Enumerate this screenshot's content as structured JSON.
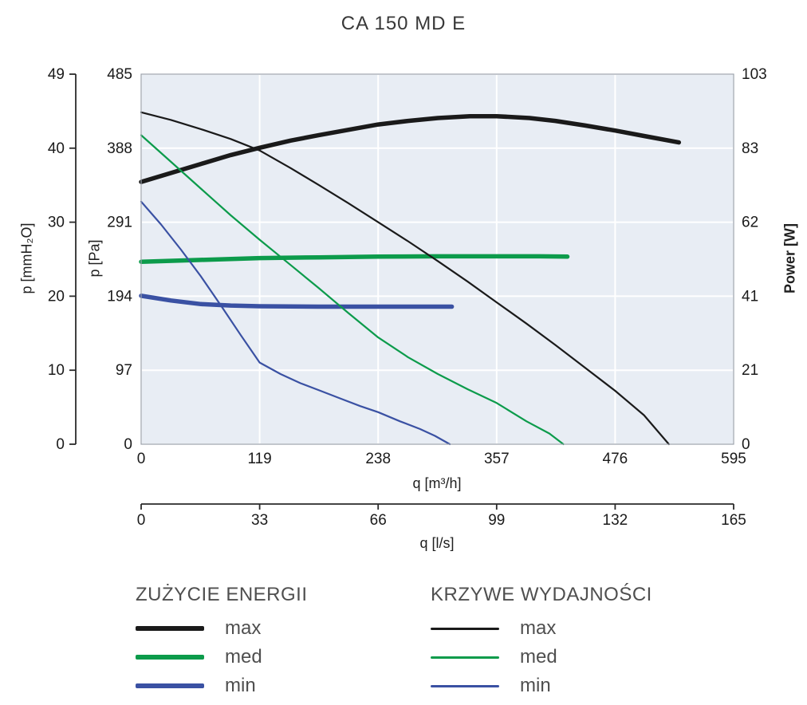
{
  "chart_data": {
    "type": "line",
    "title": "CA 150 MD E",
    "xlim": [
      0,
      595
    ],
    "ylim_pa": [
      0,
      485
    ],
    "ylim_power": [
      0,
      103
    ],
    "grid": true,
    "legend_position": "bottom",
    "plot_bg": "#e8edf4",
    "grid_color": "#ffffff",
    "border_color": "#9aa1ab",
    "axes": {
      "mmh2o": {
        "label": "p [mmH₂O]",
        "ticks": [
          0,
          10,
          20,
          30,
          40,
          49
        ]
      },
      "pa": {
        "label": "p [Pa]",
        "ticks": [
          0,
          97,
          194,
          291,
          388,
          485
        ]
      },
      "power": {
        "label": "Power [W]",
        "ticks": [
          0,
          21,
          41,
          62,
          83,
          103
        ]
      },
      "m3h": {
        "label": "q [m³/h]",
        "ticks": [
          0,
          119,
          238,
          357,
          476,
          595
        ],
        "max": 595
      },
      "ls": {
        "label": "q [l/s]",
        "ticks": [
          0,
          33,
          66,
          99,
          132,
          165
        ],
        "max": 165
      }
    },
    "series": [
      {
        "name": "power-max",
        "group": "ZUŻYCIE ENERGII",
        "label": "max",
        "axis": "w",
        "units": "W",
        "color": "#1a1a1a",
        "width": 5.5,
        "points": [
          [
            0,
            73
          ],
          [
            30,
            75.5
          ],
          [
            60,
            78
          ],
          [
            90,
            80.5
          ],
          [
            119,
            82.5
          ],
          [
            150,
            84.5
          ],
          [
            178,
            86
          ],
          [
            208,
            87.5
          ],
          [
            238,
            89
          ],
          [
            268,
            90
          ],
          [
            298,
            90.8
          ],
          [
            330,
            91.3
          ],
          [
            357,
            91.3
          ],
          [
            390,
            90.8
          ],
          [
            416,
            90
          ],
          [
            446,
            88.7
          ],
          [
            476,
            87.3
          ],
          [
            505,
            85.8
          ],
          [
            540,
            84
          ]
        ]
      },
      {
        "name": "power-med",
        "group": "ZUŻYCIE ENERGII",
        "label": "med",
        "axis": "w",
        "units": "W",
        "color": "#0c9b4b",
        "width": 5.5,
        "points": [
          [
            0,
            50.8
          ],
          [
            60,
            51.3
          ],
          [
            119,
            51.8
          ],
          [
            178,
            52
          ],
          [
            238,
            52.2
          ],
          [
            298,
            52.3
          ],
          [
            357,
            52.3
          ],
          [
            400,
            52.3
          ],
          [
            428,
            52.2
          ]
        ]
      },
      {
        "name": "power-min",
        "group": "ZUŻYCIE ENERGII",
        "label": "min",
        "axis": "w",
        "units": "W",
        "color": "#3a51a3",
        "width": 5.5,
        "points": [
          [
            0,
            41.3
          ],
          [
            30,
            40
          ],
          [
            60,
            39
          ],
          [
            90,
            38.6
          ],
          [
            119,
            38.4
          ],
          [
            178,
            38.3
          ],
          [
            238,
            38.3
          ],
          [
            280,
            38.3
          ],
          [
            312,
            38.3
          ]
        ]
      },
      {
        "name": "perf-max",
        "group": "KRZYWE WYDAJNOŚCI",
        "label": "max",
        "axis": "pa",
        "units": "Pa",
        "color": "#1a1a1a",
        "width": 2.2,
        "points": [
          [
            0,
            435
          ],
          [
            30,
            425
          ],
          [
            60,
            413
          ],
          [
            90,
            400
          ],
          [
            119,
            385
          ],
          [
            150,
            362
          ],
          [
            178,
            340
          ],
          [
            208,
            316
          ],
          [
            238,
            291
          ],
          [
            268,
            266
          ],
          [
            298,
            240
          ],
          [
            328,
            213
          ],
          [
            357,
            186
          ],
          [
            387,
            158
          ],
          [
            416,
            130
          ],
          [
            446,
            100
          ],
          [
            476,
            70
          ],
          [
            505,
            38
          ],
          [
            530,
            0
          ]
        ]
      },
      {
        "name": "perf-med",
        "group": "KRZYWE WYDAJNOŚCI",
        "label": "med",
        "axis": "pa",
        "units": "Pa",
        "color": "#0c9b4b",
        "width": 2.2,
        "points": [
          [
            0,
            405
          ],
          [
            30,
            370
          ],
          [
            60,
            335
          ],
          [
            90,
            300
          ],
          [
            119,
            268
          ],
          [
            150,
            235
          ],
          [
            178,
            205
          ],
          [
            208,
            172
          ],
          [
            238,
            140
          ],
          [
            268,
            114
          ],
          [
            298,
            92
          ],
          [
            328,
            72
          ],
          [
            357,
            54
          ],
          [
            387,
            30
          ],
          [
            410,
            14
          ],
          [
            424,
            0
          ]
        ]
      },
      {
        "name": "perf-min",
        "group": "KRZYWE WYDAJNOŚCI",
        "label": "min",
        "axis": "pa",
        "units": "Pa",
        "color": "#3a51a3",
        "width": 2.2,
        "points": [
          [
            0,
            318
          ],
          [
            20,
            288
          ],
          [
            40,
            255
          ],
          [
            60,
            220
          ],
          [
            80,
            182
          ],
          [
            100,
            143
          ],
          [
            119,
            107
          ],
          [
            140,
            92
          ],
          [
            160,
            80
          ],
          [
            180,
            70
          ],
          [
            200,
            60
          ],
          [
            220,
            50
          ],
          [
            238,
            42
          ],
          [
            260,
            30
          ],
          [
            280,
            20
          ],
          [
            295,
            11
          ],
          [
            310,
            0
          ]
        ]
      }
    ]
  },
  "legend": {
    "groups": [
      {
        "title": "ZUŻYCIE ENERGII",
        "items": [
          {
            "label": "max",
            "color": "#1a1a1a",
            "style": "thick"
          },
          {
            "label": "med",
            "color": "#0c9b4b",
            "style": "thick"
          },
          {
            "label": "min",
            "color": "#3a51a3",
            "style": "thick"
          }
        ]
      },
      {
        "title": "KRZYWE WYDAJNOŚCI",
        "items": [
          {
            "label": "max",
            "color": "#1a1a1a",
            "style": "thin"
          },
          {
            "label": "med",
            "color": "#0c9b4b",
            "style": "thin"
          },
          {
            "label": "min",
            "color": "#3a51a3",
            "style": "thin"
          }
        ]
      }
    ]
  }
}
